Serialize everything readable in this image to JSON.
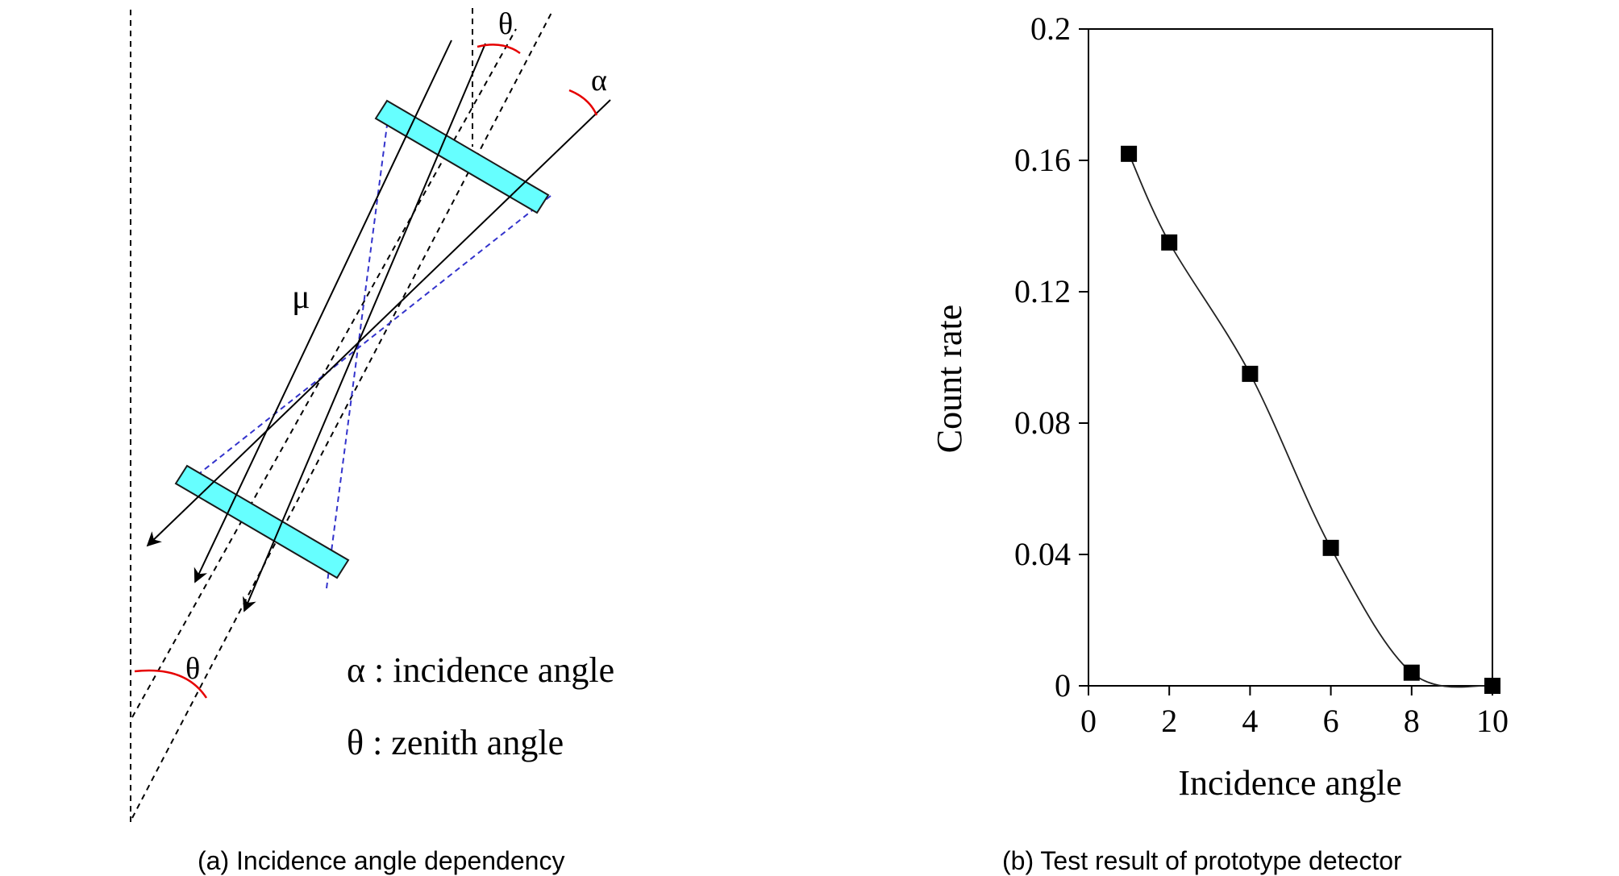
{
  "diagram": {
    "labels": {
      "theta_top": "θ",
      "alpha_top": "α",
      "mu": "μ",
      "theta_bottom": "θ",
      "legend_alpha": "α : incidence angle",
      "legend_theta": "θ : zenith angle"
    },
    "colors": {
      "detector_fill": "#66FFFF",
      "detector_stroke": "#1a1a1a",
      "acceptance_line": "#3333CC",
      "angle_arc": "#E60000",
      "ray": "#000000"
    },
    "caption": "(a) Incidence angle dependency"
  },
  "chart_data": {
    "type": "scatter",
    "x": [
      1,
      2,
      4,
      6,
      8,
      10
    ],
    "y": [
      0.162,
      0.135,
      0.095,
      0.042,
      0.004,
      0.0
    ],
    "smooth_line": true,
    "marker": "square",
    "xlabel": "Incidence angle",
    "ylabel": "Count rate",
    "xlim": [
      0,
      10
    ],
    "ylim": [
      0,
      0.2
    ],
    "xticks": [
      "0",
      "2",
      "4",
      "6",
      "8",
      "10"
    ],
    "yticks": [
      "0",
      "0.04",
      "0.08",
      "0.12",
      "0.16",
      "0.2"
    ],
    "grid": false,
    "caption": "(b) Test result of prototype detector"
  }
}
